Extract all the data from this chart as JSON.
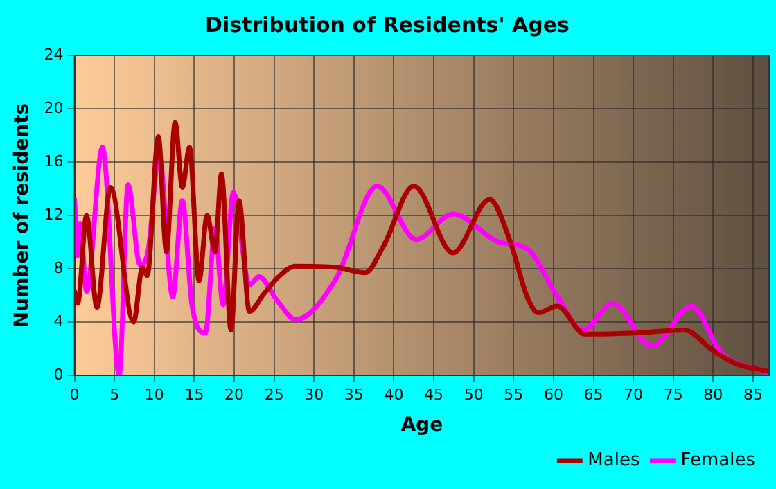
{
  "chart_data": {
    "type": "line",
    "title": "Distribution of Residents' Ages",
    "xlabel": "Age",
    "ylabel": "Number of residents",
    "xlim": [
      0,
      87
    ],
    "xticks": [
      0,
      5,
      10,
      15,
      20,
      25,
      30,
      35,
      40,
      45,
      50,
      55,
      60,
      65,
      70,
      75,
      80,
      85
    ],
    "ylim": [
      0,
      24
    ],
    "yticks": [
      0,
      4,
      8,
      12,
      16,
      20,
      24
    ],
    "grid": true,
    "legend": "bottom right",
    "marker": "none",
    "line_style": "solid",
    "series": [
      {
        "name": "Males",
        "color": "#aa0000",
        "x": [
          0,
          0.4,
          1.5,
          2.8,
          4.5,
          7.4,
          8.5,
          9.1,
          10.5,
          11.5,
          12.6,
          13.5,
          14.4,
          15.6,
          16.6,
          17.6,
          18.4,
          19.6,
          20.6,
          21.9,
          23.7,
          25.4,
          27.7,
          32.9,
          36.4,
          38.7,
          42.5,
          47.4,
          52,
          54.6,
          56.7,
          58.1,
          60.5,
          63.9,
          70.6,
          76.4,
          79.9,
          82.8,
          86.8
        ],
        "values": [
          6.3,
          5.4,
          12,
          5.1,
          14.1,
          4,
          8.1,
          7.5,
          17.9,
          9.3,
          19,
          14.1,
          17.1,
          7.1,
          12,
          9.3,
          15.1,
          3.4,
          13.1,
          4.8,
          6.1,
          7.3,
          8.2,
          8.1,
          7.7,
          9.7,
          14.2,
          9.2,
          13.2,
          10,
          5.9,
          4.7,
          5.2,
          3.1,
          3.2,
          3.4,
          1.9,
          0.9,
          0.3
        ]
      },
      {
        "name": "Females",
        "color": "#ff00ff",
        "x": [
          0,
          0.4,
          0.7,
          1.5,
          3.5,
          5.6,
          6.7,
          8.2,
          9.2,
          10.6,
          12.3,
          13.5,
          14.7,
          16.4,
          17.6,
          18.6,
          19.9,
          21.9,
          23.1,
          25.4,
          27.7,
          32.8,
          37.9,
          42.8,
          47.4,
          53.2,
          56.7,
          60.4,
          63.7,
          67.4,
          72.3,
          77.3,
          81,
          86.8
        ],
        "values": [
          13.2,
          9,
          11.4,
          6.3,
          17.1,
          0,
          14.3,
          8.3,
          9.3,
          16.5,
          5.9,
          13.1,
          5.3,
          3.2,
          11,
          5.3,
          13.7,
          6.8,
          7.4,
          5.6,
          4.2,
          7.3,
          14.2,
          10.2,
          12.1,
          10,
          9.5,
          6,
          3.4,
          5.4,
          2.2,
          5.2,
          1.7,
          0.2
        ]
      }
    ]
  }
}
